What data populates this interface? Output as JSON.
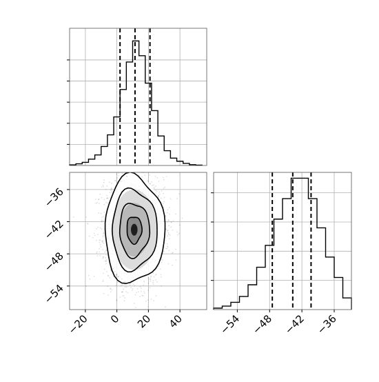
{
  "chart_data": [
    {
      "type": "histogram",
      "panel": "marginal-x",
      "bin_edges": [
        -30,
        -26,
        -22,
        -18,
        -14,
        -10,
        -6,
        -2,
        2,
        6,
        10,
        14,
        18,
        22,
        26,
        30,
        34,
        38,
        42,
        46,
        50,
        54
      ],
      "counts": [
        0.3,
        0.8,
        1.5,
        3.0,
        5.0,
        9.0,
        14.5,
        23.0,
        36.0,
        49.0,
        59.0,
        52.0,
        39.0,
        26.0,
        14.0,
        7.0,
        3.5,
        2.0,
        1.0,
        0.4,
        0.2
      ],
      "quantile_lines": [
        2,
        11.5,
        21
      ],
      "xlim": [
        -30,
        57
      ],
      "ylim": [
        0,
        65
      ],
      "y_ticks_unlabeled": [
        10,
        20,
        30,
        40,
        50
      ],
      "grid": true
    },
    {
      "type": "histogram",
      "panel": "marginal-y",
      "bin_edges": [
        -58.4,
        -56.8,
        -55.2,
        -53.6,
        -52.0,
        -50.4,
        -48.8,
        -47.2,
        -45.6,
        -44.0,
        -42.4,
        -40.8,
        -39.2,
        -37.6,
        -36.0,
        -34.4,
        -32.8
      ],
      "counts": [
        0.5,
        1.2,
        2.5,
        4.5,
        8.5,
        14.5,
        22.0,
        31.0,
        38.0,
        45.0,
        45.0,
        38.0,
        28.0,
        18.0,
        11.0,
        4.0
      ],
      "quantile_lines": [
        -47.5,
        -43.7,
        -40.3
      ],
      "xlim": [
        -58.4,
        -32.8
      ],
      "ylim": [
        0,
        47
      ],
      "x_ticks": [
        "−54",
        "−48",
        "−42",
        "−36"
      ],
      "x_tick_values": [
        -54,
        -48,
        -42,
        -36
      ],
      "y_ticks_unlabeled": [
        10,
        20,
        30,
        40
      ],
      "grid": true
    },
    {
      "type": "scatter",
      "panel": "joint-2d",
      "description_kind": "2d-histogram-with-contours",
      "center": [
        11.0,
        -43.5
      ],
      "std": [
        9.5,
        5.0
      ],
      "xlim": [
        -30,
        57
      ],
      "ylim": [
        -58.4,
        -32.8
      ],
      "x_ticks": [
        "−20",
        "0",
        "20",
        "40"
      ],
      "x_tick_values": [
        -20,
        0,
        20,
        40
      ],
      "y_ticks": [
        "−36",
        "−42",
        "−48",
        "−54"
      ],
      "y_tick_values": [
        -36,
        -42,
        -48,
        -54
      ],
      "contour_levels_sigma": [
        0.5,
        1.0,
        1.5,
        2.0
      ],
      "grid": true
    }
  ]
}
